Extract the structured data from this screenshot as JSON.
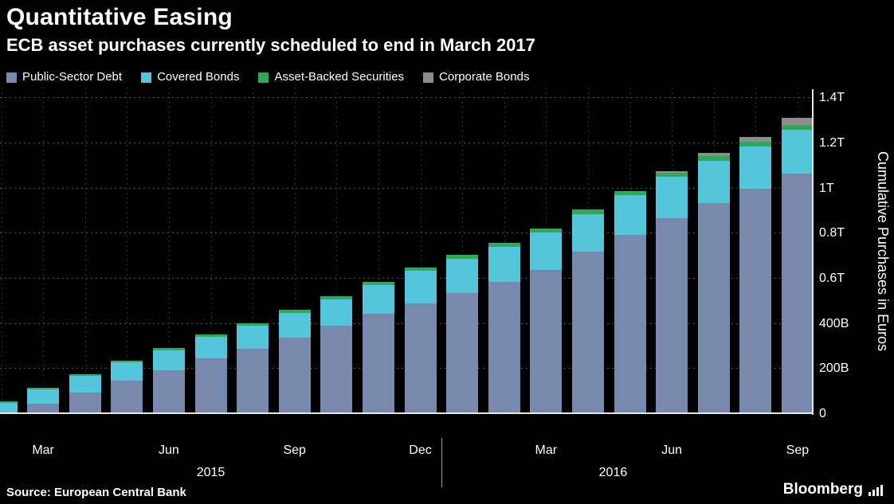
{
  "header": {
    "title": "Quantitative Easing",
    "subtitle": "ECB asset purchases currently scheduled to end in March 2017"
  },
  "chart_data": {
    "type": "bar",
    "stacked": true,
    "title": "Quantitative Easing",
    "subtitle": "ECB asset purchases currently scheduled to end in March 2017",
    "ylabel": "Cumulative Purchases in Euros",
    "value_unit": "billions of euros",
    "ylim": [
      0,
      1400
    ],
    "grid": "dotted",
    "legend_position": "top",
    "y_ticks": [
      {
        "value": 0,
        "label": "0"
      },
      {
        "value": 200,
        "label": "200B"
      },
      {
        "value": 400,
        "label": "400B"
      },
      {
        "value": 600,
        "label": "0.6T"
      },
      {
        "value": 800,
        "label": "0.8T"
      },
      {
        "value": 1000,
        "label": "1T"
      },
      {
        "value": 1200,
        "label": "1.2T"
      },
      {
        "value": 1400,
        "label": "1.4T"
      }
    ],
    "categories": [
      "Feb 2015",
      "Mar 2015",
      "Apr 2015",
      "May 2015",
      "Jun 2015",
      "Jul 2015",
      "Aug 2015",
      "Sep 2015",
      "Oct 2015",
      "Nov 2015",
      "Dec 2015",
      "Jan 2016",
      "Feb 2016",
      "Mar 2016",
      "Apr 2016",
      "May 2016",
      "Jun 2016",
      "Jul 2016",
      "Aug 2016",
      "Sep 2016"
    ],
    "x_tick_labels": [
      {
        "index": 1,
        "label": "Mar"
      },
      {
        "index": 4,
        "label": "Jun"
      },
      {
        "index": 7,
        "label": "Sep"
      },
      {
        "index": 10,
        "label": "Dec"
      },
      {
        "index": 13,
        "label": "Mar"
      },
      {
        "index": 16,
        "label": "Jun"
      },
      {
        "index": 19,
        "label": "Sep"
      }
    ],
    "year_labels": [
      {
        "index": 5,
        "label": "2015"
      },
      {
        "index": 14.6,
        "label": "2016"
      }
    ],
    "year_divider_index": 10.5,
    "series": [
      {
        "name": "Public-Sector Debt",
        "color": "#7789ad",
        "values": [
          0,
          47,
          95,
          147,
          194,
          246,
          290,
          338,
          390,
          444,
          491,
          537,
          585,
          639,
          718,
          795,
          869,
          936,
          997,
          1065
        ]
      },
      {
        "name": "Covered Bonds",
        "color": "#53c6db",
        "values": [
          51,
          64,
          75,
          84,
          90,
          97,
          102,
          110,
          118,
          127,
          143,
          150,
          157,
          164,
          169,
          175,
          181,
          187,
          190,
          196
        ]
      },
      {
        "name": "Asset-Backed Securities",
        "color": "#31a857",
        "values": [
          4,
          5,
          6,
          7,
          9,
          10,
          11,
          13,
          14,
          15,
          15,
          17,
          18,
          19,
          19,
          19,
          19,
          20,
          20,
          20
        ]
      },
      {
        "name": "Corporate Bonds",
        "color": "#8d8d8d",
        "values": [
          0,
          0,
          0,
          0,
          0,
          0,
          0,
          0,
          0,
          0,
          0,
          0,
          0,
          0,
          0,
          0,
          6,
          13,
          20,
          30
        ]
      }
    ]
  },
  "footer": {
    "source": "Source: European Central Bank",
    "brand": "Bloomberg"
  },
  "colors": {
    "background": "#000000",
    "text": "#ffffff",
    "axis": "#e6e6e6",
    "grid_major": "#555555",
    "grid_minor": "#2f2f2f"
  }
}
